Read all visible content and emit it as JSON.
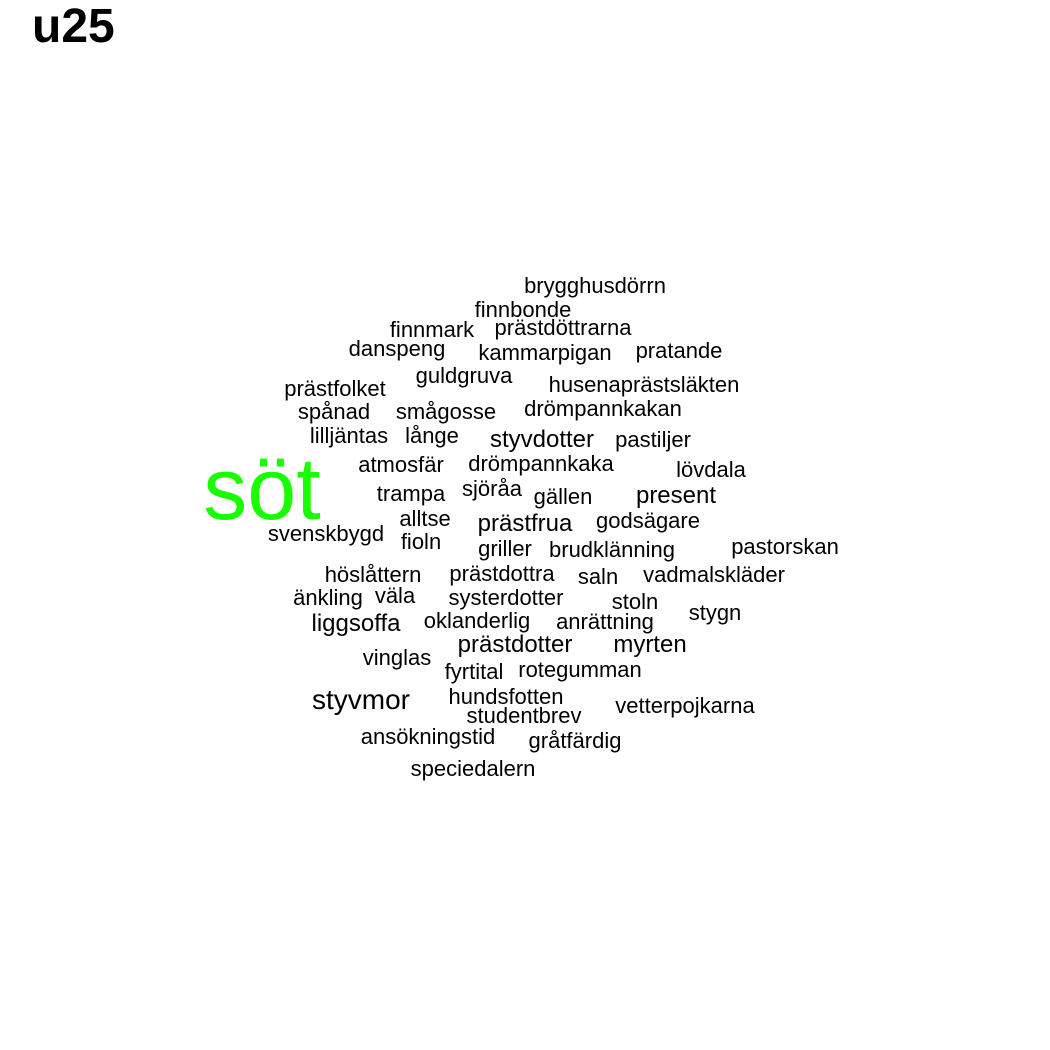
{
  "title": "u25",
  "chart_data": {
    "type": "wordcloud",
    "title": "u25",
    "highlight_color": "#1aff00",
    "default_color": "#000000",
    "words": [
      {
        "text": "söt",
        "highlight": true
      },
      {
        "text": "brygghusdörrn"
      },
      {
        "text": "finnbonde"
      },
      {
        "text": "finnmark"
      },
      {
        "text": "prästdöttrarna"
      },
      {
        "text": "danspeng"
      },
      {
        "text": "kammarpigan"
      },
      {
        "text": "pratande"
      },
      {
        "text": "guldgruva"
      },
      {
        "text": "prästfolket"
      },
      {
        "text": "husenaprästsläkten"
      },
      {
        "text": "spånad"
      },
      {
        "text": "smågosse"
      },
      {
        "text": "drömpannkakan"
      },
      {
        "text": "lilljäntas"
      },
      {
        "text": "långe"
      },
      {
        "text": "styvdotter"
      },
      {
        "text": "pastiljer"
      },
      {
        "text": "atmosfär"
      },
      {
        "text": "drömpannkaka"
      },
      {
        "text": "lövdala"
      },
      {
        "text": "trampa"
      },
      {
        "text": "sjöråa"
      },
      {
        "text": "gällen"
      },
      {
        "text": "present"
      },
      {
        "text": "alltse"
      },
      {
        "text": "prästfrua"
      },
      {
        "text": "godsägare"
      },
      {
        "text": "svenskbygd"
      },
      {
        "text": "fioln"
      },
      {
        "text": "griller"
      },
      {
        "text": "brudklänning"
      },
      {
        "text": "pastorskan"
      },
      {
        "text": "höslåttern"
      },
      {
        "text": "prästdottra"
      },
      {
        "text": "saln"
      },
      {
        "text": "vadmalskläder"
      },
      {
        "text": "änkling"
      },
      {
        "text": "väla"
      },
      {
        "text": "systerdotter"
      },
      {
        "text": "stoln"
      },
      {
        "text": "stygn"
      },
      {
        "text": "liggsoffa"
      },
      {
        "text": "oklanderlig"
      },
      {
        "text": "anrättning"
      },
      {
        "text": "prästdotter"
      },
      {
        "text": "myrten"
      },
      {
        "text": "vinglas"
      },
      {
        "text": "fyrtital"
      },
      {
        "text": "rotegumman"
      },
      {
        "text": "styvmor"
      },
      {
        "text": "hundsfotten"
      },
      {
        "text": "studentbrev"
      },
      {
        "text": "vetterpojkarna"
      },
      {
        "text": "ansökningstid"
      },
      {
        "text": "gråtfärdig"
      },
      {
        "text": "speciedalern"
      }
    ]
  }
}
